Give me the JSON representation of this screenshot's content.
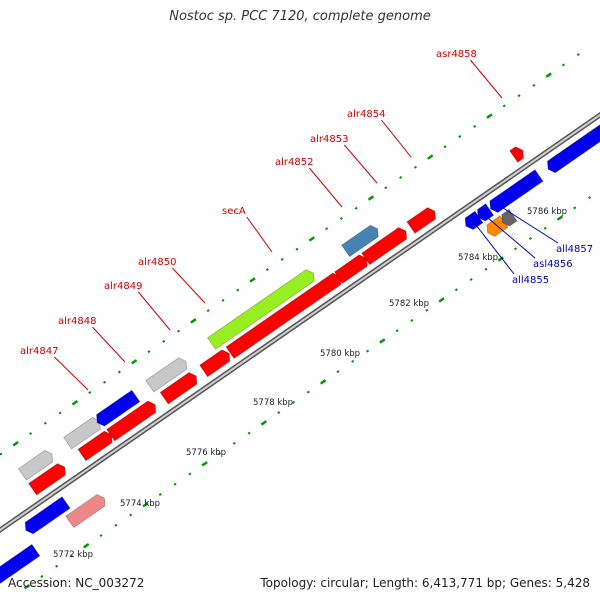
{
  "title": "Nostoc sp. PCC 7120, complete genome",
  "footer": {
    "accession": "Accession: NC_003272",
    "summary": "Topology: circular; Length: 6,413,771 bp; Genes: 5,428"
  },
  "ruler_ticks": [
    "5772 kbp",
    "5774 kbp",
    "5776 kbp",
    "5778 kbp",
    "5780 kbp",
    "5782 kbp",
    "5784 kbp",
    "5786 kbp"
  ],
  "forward_labels": [
    "alr4847",
    "alr4848",
    "alr4849",
    "alr4850",
    "secA",
    "alr4852",
    "alr4853",
    "alr4854",
    "asr4858"
  ],
  "reverse_labels": [
    "all4855",
    "asl4856",
    "all4857"
  ],
  "colors": {
    "forward_label": "#cc0000",
    "reverse_label": "#0000bb",
    "red_gene": "#ff0000",
    "blue_gene": "#0000ee",
    "grey_gene": "#c8c8c8",
    "green_gene": "#99ee22",
    "steelblue_gene": "#4682b4",
    "pink_gene": "#ee8888",
    "orange_gene": "#ff8800",
    "darkgrey_gene": "#666666",
    "backbone": "#888888",
    "tick_major": "#006600",
    "tick_minor": "#009900"
  },
  "icons": [
    "gene-arrow"
  ]
}
